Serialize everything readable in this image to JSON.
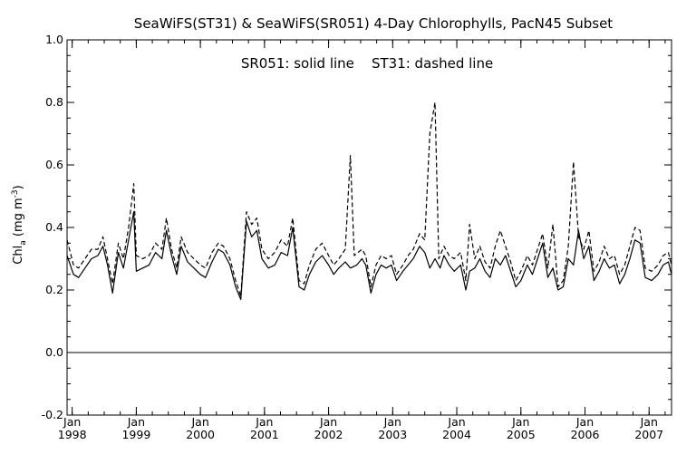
{
  "chart_data": {
    "type": "line",
    "title": "SeaWiFS(ST31) & SeaWiFS(SR051) 4-Day Chlorophylls, PacN45 Subset",
    "annotation": "SR051: solid line    ST31: dashed line",
    "ylabel_main": "Chl",
    "ylabel_sub": "a",
    "ylabel_unit": " (mg m",
    "ylabel_exp": "-3",
    "ylabel_close": ")",
    "ylim": [
      -0.2,
      1.0
    ],
    "xlim": [
      1997.92,
      2007.35
    ],
    "y_ticks": [
      "-0.2",
      "0.0",
      "0.2",
      "0.4",
      "0.6",
      "0.8",
      "1.0"
    ],
    "x_ticks": [
      {
        "month": "Jan",
        "year": "1998",
        "value": 1998.0
      },
      {
        "month": "Jan",
        "year": "1999",
        "value": 1999.0
      },
      {
        "month": "Jan",
        "year": "2000",
        "value": 2000.0
      },
      {
        "month": "Jan",
        "year": "2001",
        "value": 2001.0
      },
      {
        "month": "Jan",
        "year": "2002",
        "value": 2002.0
      },
      {
        "month": "Jan",
        "year": "2003",
        "value": 2003.0
      },
      {
        "month": "Jan",
        "year": "2004",
        "value": 2004.0
      },
      {
        "month": "Jan",
        "year": "2005",
        "value": 2005.0
      },
      {
        "month": "Jan",
        "year": "2006",
        "value": 2006.0
      },
      {
        "month": "Jan",
        "year": "2007",
        "value": 2007.0
      }
    ],
    "zero_line": 0.0,
    "series": [
      {
        "style": "solid",
        "points": [
          [
            1997.92,
            0.31
          ],
          [
            1998.02,
            0.25
          ],
          [
            1998.1,
            0.24
          ],
          [
            1998.2,
            0.27
          ],
          [
            1998.3,
            0.3
          ],
          [
            1998.4,
            0.31
          ],
          [
            1998.48,
            0.34
          ],
          [
            1998.55,
            0.28
          ],
          [
            1998.63,
            0.19
          ],
          [
            1998.72,
            0.32
          ],
          [
            1998.8,
            0.27
          ],
          [
            1998.88,
            0.36
          ],
          [
            1998.96,
            0.45
          ],
          [
            1999.0,
            0.26
          ],
          [
            1999.1,
            0.27
          ],
          [
            1999.2,
            0.28
          ],
          [
            1999.3,
            0.32
          ],
          [
            1999.4,
            0.3
          ],
          [
            1999.47,
            0.39
          ],
          [
            1999.55,
            0.31
          ],
          [
            1999.63,
            0.25
          ],
          [
            1999.7,
            0.34
          ],
          [
            1999.8,
            0.29
          ],
          [
            1999.9,
            0.27
          ],
          [
            2000.0,
            0.25
          ],
          [
            2000.08,
            0.24
          ],
          [
            2000.18,
            0.29
          ],
          [
            2000.28,
            0.33
          ],
          [
            2000.36,
            0.32
          ],
          [
            2000.46,
            0.28
          ],
          [
            2000.55,
            0.21
          ],
          [
            2000.63,
            0.17
          ],
          [
            2000.72,
            0.42
          ],
          [
            2000.8,
            0.37
          ],
          [
            2000.88,
            0.39
          ],
          [
            2000.96,
            0.3
          ],
          [
            2001.06,
            0.27
          ],
          [
            2001.16,
            0.28
          ],
          [
            2001.26,
            0.32
          ],
          [
            2001.36,
            0.31
          ],
          [
            2001.44,
            0.4
          ],
          [
            2001.54,
            0.21
          ],
          [
            2001.62,
            0.2
          ],
          [
            2001.7,
            0.25
          ],
          [
            2001.8,
            0.29
          ],
          [
            2001.9,
            0.31
          ],
          [
            2002.0,
            0.28
          ],
          [
            2002.08,
            0.25
          ],
          [
            2002.16,
            0.27
          ],
          [
            2002.26,
            0.29
          ],
          [
            2002.34,
            0.27
          ],
          [
            2002.44,
            0.28
          ],
          [
            2002.52,
            0.3
          ],
          [
            2002.58,
            0.28
          ],
          [
            2002.66,
            0.19
          ],
          [
            2002.74,
            0.25
          ],
          [
            2002.82,
            0.28
          ],
          [
            2002.9,
            0.27
          ],
          [
            2002.98,
            0.28
          ],
          [
            2003.06,
            0.23
          ],
          [
            2003.16,
            0.26
          ],
          [
            2003.24,
            0.28
          ],
          [
            2003.32,
            0.3
          ],
          [
            2003.42,
            0.34
          ],
          [
            2003.5,
            0.32
          ],
          [
            2003.58,
            0.27
          ],
          [
            2003.66,
            0.3
          ],
          [
            2003.74,
            0.27
          ],
          [
            2003.8,
            0.31
          ],
          [
            2003.88,
            0.28
          ],
          [
            2003.96,
            0.26
          ],
          [
            2004.06,
            0.28
          ],
          [
            2004.14,
            0.2
          ],
          [
            2004.2,
            0.26
          ],
          [
            2004.28,
            0.27
          ],
          [
            2004.36,
            0.3
          ],
          [
            2004.44,
            0.26
          ],
          [
            2004.52,
            0.24
          ],
          [
            2004.6,
            0.3
          ],
          [
            2004.68,
            0.28
          ],
          [
            2004.76,
            0.31
          ],
          [
            2004.84,
            0.26
          ],
          [
            2004.92,
            0.21
          ],
          [
            2005.0,
            0.23
          ],
          [
            2005.1,
            0.28
          ],
          [
            2005.18,
            0.25
          ],
          [
            2005.26,
            0.3
          ],
          [
            2005.34,
            0.35
          ],
          [
            2005.42,
            0.24
          ],
          [
            2005.5,
            0.27
          ],
          [
            2005.58,
            0.2
          ],
          [
            2005.66,
            0.21
          ],
          [
            2005.74,
            0.3
          ],
          [
            2005.82,
            0.28
          ],
          [
            2005.9,
            0.39
          ],
          [
            2005.98,
            0.3
          ],
          [
            2006.06,
            0.34
          ],
          [
            2006.14,
            0.23
          ],
          [
            2006.22,
            0.26
          ],
          [
            2006.3,
            0.3
          ],
          [
            2006.38,
            0.27
          ],
          [
            2006.46,
            0.28
          ],
          [
            2006.54,
            0.22
          ],
          [
            2006.62,
            0.25
          ],
          [
            2006.7,
            0.3
          ],
          [
            2006.78,
            0.36
          ],
          [
            2006.86,
            0.35
          ],
          [
            2006.94,
            0.24
          ],
          [
            2007.04,
            0.23
          ],
          [
            2007.14,
            0.25
          ],
          [
            2007.22,
            0.28
          ],
          [
            2007.3,
            0.29
          ],
          [
            2007.35,
            0.25
          ]
        ]
      },
      {
        "style": "dashed",
        "points": [
          [
            1997.92,
            0.36
          ],
          [
            1998.02,
            0.28
          ],
          [
            1998.1,
            0.27
          ],
          [
            1998.2,
            0.3
          ],
          [
            1998.3,
            0.33
          ],
          [
            1998.4,
            0.33
          ],
          [
            1998.48,
            0.37
          ],
          [
            1998.55,
            0.3
          ],
          [
            1998.63,
            0.22
          ],
          [
            1998.72,
            0.35
          ],
          [
            1998.8,
            0.3
          ],
          [
            1998.88,
            0.4
          ],
          [
            1998.96,
            0.54
          ],
          [
            1999.0,
            0.31
          ],
          [
            1999.1,
            0.3
          ],
          [
            1999.2,
            0.31
          ],
          [
            1999.3,
            0.35
          ],
          [
            1999.4,
            0.33
          ],
          [
            1999.47,
            0.43
          ],
          [
            1999.55,
            0.33
          ],
          [
            1999.63,
            0.27
          ],
          [
            1999.7,
            0.37
          ],
          [
            1999.8,
            0.32
          ],
          [
            1999.9,
            0.3
          ],
          [
            2000.0,
            0.28
          ],
          [
            2000.08,
            0.27
          ],
          [
            2000.18,
            0.32
          ],
          [
            2000.28,
            0.35
          ],
          [
            2000.36,
            0.34
          ],
          [
            2000.46,
            0.3
          ],
          [
            2000.55,
            0.23
          ],
          [
            2000.63,
            0.18
          ],
          [
            2000.72,
            0.45
          ],
          [
            2000.8,
            0.41
          ],
          [
            2000.88,
            0.43
          ],
          [
            2000.96,
            0.33
          ],
          [
            2001.06,
            0.3
          ],
          [
            2001.16,
            0.32
          ],
          [
            2001.26,
            0.36
          ],
          [
            2001.36,
            0.34
          ],
          [
            2001.44,
            0.43
          ],
          [
            2001.54,
            0.23
          ],
          [
            2001.62,
            0.22
          ],
          [
            2001.7,
            0.28
          ],
          [
            2001.8,
            0.33
          ],
          [
            2001.9,
            0.35
          ],
          [
            2002.0,
            0.31
          ],
          [
            2002.08,
            0.28
          ],
          [
            2002.16,
            0.3
          ],
          [
            2002.26,
            0.33
          ],
          [
            2002.34,
            0.63
          ],
          [
            2002.4,
            0.31
          ],
          [
            2002.52,
            0.33
          ],
          [
            2002.58,
            0.31
          ],
          [
            2002.66,
            0.21
          ],
          [
            2002.74,
            0.28
          ],
          [
            2002.82,
            0.31
          ],
          [
            2002.9,
            0.3
          ],
          [
            2002.98,
            0.31
          ],
          [
            2003.06,
            0.25
          ],
          [
            2003.16,
            0.28
          ],
          [
            2003.24,
            0.31
          ],
          [
            2003.32,
            0.33
          ],
          [
            2003.42,
            0.38
          ],
          [
            2003.5,
            0.36
          ],
          [
            2003.58,
            0.7
          ],
          [
            2003.66,
            0.8
          ],
          [
            2003.72,
            0.3
          ],
          [
            2003.8,
            0.34
          ],
          [
            2003.88,
            0.31
          ],
          [
            2003.96,
            0.3
          ],
          [
            2004.06,
            0.32
          ],
          [
            2004.14,
            0.23
          ],
          [
            2004.2,
            0.41
          ],
          [
            2004.28,
            0.3
          ],
          [
            2004.36,
            0.34
          ],
          [
            2004.44,
            0.29
          ],
          [
            2004.52,
            0.27
          ],
          [
            2004.6,
            0.34
          ],
          [
            2004.68,
            0.39
          ],
          [
            2004.76,
            0.34
          ],
          [
            2004.84,
            0.29
          ],
          [
            2004.92,
            0.23
          ],
          [
            2005.0,
            0.26
          ],
          [
            2005.1,
            0.31
          ],
          [
            2005.18,
            0.28
          ],
          [
            2005.26,
            0.33
          ],
          [
            2005.34,
            0.38
          ],
          [
            2005.42,
            0.27
          ],
          [
            2005.5,
            0.41
          ],
          [
            2005.58,
            0.21
          ],
          [
            2005.66,
            0.23
          ],
          [
            2005.74,
            0.34
          ],
          [
            2005.82,
            0.61
          ],
          [
            2005.9,
            0.37
          ],
          [
            2005.98,
            0.33
          ],
          [
            2006.06,
            0.39
          ],
          [
            2006.14,
            0.26
          ],
          [
            2006.22,
            0.29
          ],
          [
            2006.3,
            0.34
          ],
          [
            2006.38,
            0.3
          ],
          [
            2006.46,
            0.31
          ],
          [
            2006.54,
            0.25
          ],
          [
            2006.62,
            0.28
          ],
          [
            2006.7,
            0.34
          ],
          [
            2006.78,
            0.4
          ],
          [
            2006.86,
            0.39
          ],
          [
            2006.94,
            0.27
          ],
          [
            2007.04,
            0.26
          ],
          [
            2007.14,
            0.28
          ],
          [
            2007.22,
            0.31
          ],
          [
            2007.3,
            0.32
          ],
          [
            2007.35,
            0.28
          ]
        ]
      }
    ]
  }
}
